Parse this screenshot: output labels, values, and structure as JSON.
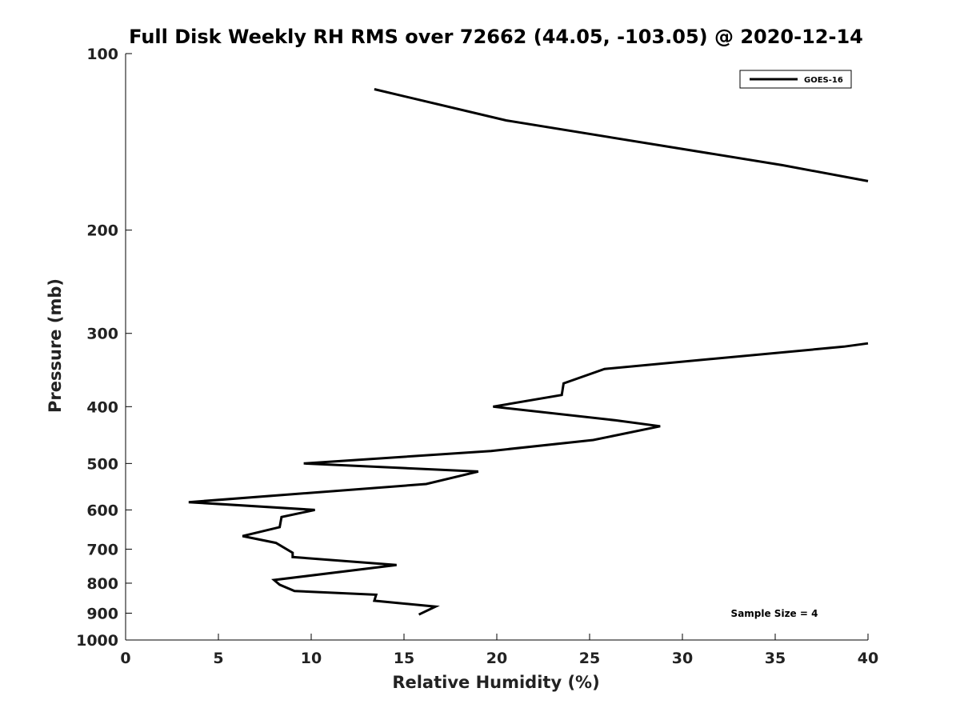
{
  "chart_data": {
    "type": "line",
    "title": "Full Disk Weekly RH RMS over 72662 (44.05, -103.05) @ 2020-12-14",
    "xlabel": "Relative Humidity (%)",
    "ylabel": "Pressure (mb)",
    "xlim": [
      0,
      40
    ],
    "ylim": [
      100,
      1000
    ],
    "y_scale": "log",
    "y_reversed": true,
    "grid": false,
    "legend_position": "top-right",
    "x_ticks": [
      "0",
      "5",
      "10",
      "15",
      "20",
      "25",
      "30",
      "35",
      "40"
    ],
    "y_ticks": [
      "100",
      "200",
      "300",
      "400",
      "500",
      "600",
      "700",
      "800",
      "900",
      "1000"
    ],
    "annotation": "Sample Size = 4",
    "series": [
      {
        "name": "GOES-16",
        "color": "#000000",
        "segments": [
          [
            {
              "x": 13.4,
              "y": 115
            },
            {
              "x": 20.5,
              "y": 130
            },
            {
              "x": 35.4,
              "y": 155
            },
            {
              "x": 40.0,
              "y": 165
            }
          ],
          [
            {
              "x": 40.0,
              "y": 312
            },
            {
              "x": 38.7,
              "y": 316
            },
            {
              "x": 25.8,
              "y": 345
            },
            {
              "x": 23.6,
              "y": 365
            },
            {
              "x": 23.5,
              "y": 382
            },
            {
              "x": 19.8,
              "y": 400
            },
            {
              "x": 26.4,
              "y": 422
            },
            {
              "x": 28.8,
              "y": 432
            },
            {
              "x": 25.2,
              "y": 456
            },
            {
              "x": 19.7,
              "y": 476
            },
            {
              "x": 9.6,
              "y": 500
            },
            {
              "x": 19.0,
              "y": 516
            },
            {
              "x": 16.2,
              "y": 542
            },
            {
              "x": 3.4,
              "y": 582
            },
            {
              "x": 10.2,
              "y": 600
            },
            {
              "x": 8.4,
              "y": 617
            },
            {
              "x": 8.3,
              "y": 642
            },
            {
              "x": 6.3,
              "y": 665
            },
            {
              "x": 8.1,
              "y": 683
            },
            {
              "x": 9.0,
              "y": 710
            },
            {
              "x": 9.0,
              "y": 722
            },
            {
              "x": 14.6,
              "y": 745
            },
            {
              "x": 8.0,
              "y": 790
            },
            {
              "x": 8.3,
              "y": 805
            },
            {
              "x": 9.1,
              "y": 825
            },
            {
              "x": 13.5,
              "y": 837
            },
            {
              "x": 13.4,
              "y": 857
            },
            {
              "x": 16.7,
              "y": 877
            },
            {
              "x": 15.8,
              "y": 905
            }
          ]
        ]
      }
    ]
  }
}
